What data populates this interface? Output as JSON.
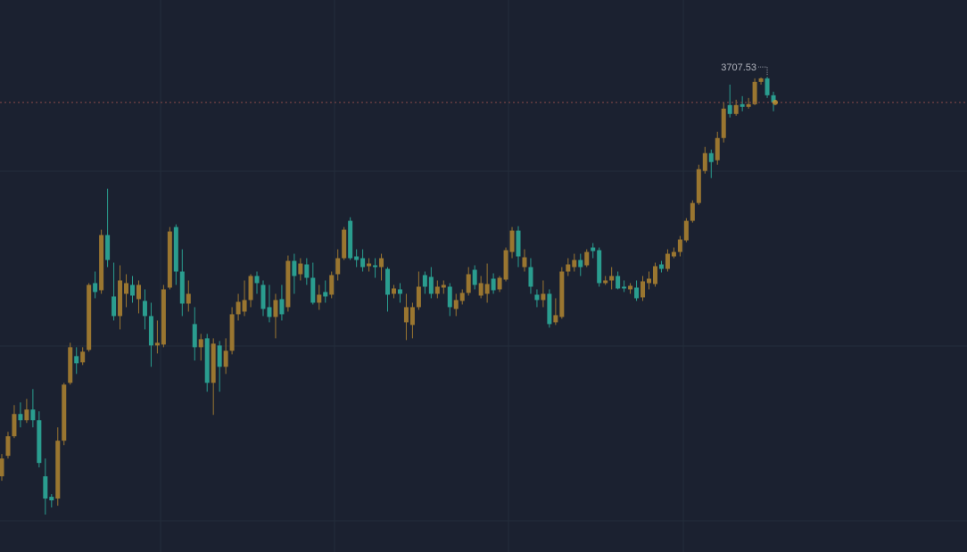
{
  "chart_data": {
    "type": "candlestick",
    "up_color": "#9a7630",
    "down_color": "#2a9d8f",
    "ylim": [
      2640,
      3880
    ],
    "open": [
      2810,
      2856,
      2900,
      2950,
      2936,
      2960,
      2936,
      2810,
      2764,
      2760,
      2890,
      3020,
      3080,
      3066,
      3094,
      3244,
      3228,
      3352,
      3214,
      3170,
      3220,
      3240,
      3208,
      3204,
      3170,
      3104,
      3106,
      3234,
      3370,
      3270,
      3198,
      3152,
      3100,
      3120,
      3020,
      3104,
      3056,
      3092,
      3174,
      3180,
      3206,
      3260,
      3240,
      3190,
      3168,
      3208,
      3190,
      3294,
      3264,
      3286,
      3256,
      3200,
      3224,
      3218,
      3264,
      3300,
      3384,
      3304,
      3300,
      3282,
      3284,
      3280,
      3276,
      3220,
      3230,
      3156,
      3150,
      3190,
      3262,
      3258,
      3220,
      3234,
      3236,
      3186,
      3204,
      3222,
      3274,
      3216,
      3220,
      3254,
      3230,
      3252,
      3314,
      3362,
      3280,
      3280,
      3218,
      3206,
      3220,
      3156,
      3168,
      3270,
      3280,
      3296,
      3284,
      3324,
      3318,
      3244,
      3250,
      3260,
      3236,
      3230,
      3234,
      3212,
      3244,
      3242,
      3286,
      3276,
      3304,
      3314,
      3340,
      3384,
      3424,
      3496,
      3536,
      3520,
      3570,
      3644,
      3624,
      3646,
      3640,
      3646,
      3696,
      3704,
      3666
    ],
    "high": [
      2860,
      2910,
      2970,
      2976,
      2984,
      3006,
      2956,
      2850,
      2770,
      2920,
      3020,
      3110,
      3100,
      3100,
      3244,
      3270,
      3364,
      3456,
      3290,
      3284,
      3264,
      3260,
      3250,
      3230,
      3200,
      3160,
      3240,
      3370,
      3376,
      3320,
      3250,
      3190,
      3130,
      3130,
      3120,
      3114,
      3120,
      3190,
      3220,
      3250,
      3264,
      3270,
      3250,
      3240,
      3220,
      3240,
      3306,
      3310,
      3300,
      3300,
      3290,
      3240,
      3250,
      3270,
      3320,
      3370,
      3392,
      3320,
      3320,
      3300,
      3300,
      3310,
      3280,
      3240,
      3244,
      3220,
      3200,
      3270,
      3270,
      3280,
      3250,
      3250,
      3244,
      3220,
      3230,
      3280,
      3284,
      3260,
      3288,
      3266,
      3260,
      3324,
      3370,
      3372,
      3320,
      3300,
      3230,
      3250,
      3230,
      3210,
      3280,
      3300,
      3310,
      3310,
      3320,
      3334,
      3324,
      3260,
      3280,
      3270,
      3250,
      3244,
      3250,
      3260,
      3270,
      3290,
      3294,
      3320,
      3324,
      3350,
      3390,
      3430,
      3510,
      3550,
      3544,
      3584,
      3650,
      3690,
      3656,
      3664,
      3660,
      3704,
      3706,
      3707.53,
      3674
    ],
    "low": [
      2800,
      2850,
      2896,
      2920,
      2930,
      2920,
      2830,
      2724,
      2740,
      2744,
      2880,
      3016,
      3040,
      3060,
      3090,
      3210,
      3220,
      3280,
      3160,
      3140,
      3190,
      3200,
      3176,
      3140,
      3056,
      3086,
      3100,
      3230,
      3240,
      3170,
      3180,
      3070,
      3070,
      3000,
      2948,
      3000,
      3040,
      3084,
      3160,
      3170,
      3190,
      3220,
      3170,
      3156,
      3120,
      3160,
      3180,
      3220,
      3250,
      3240,
      3196,
      3184,
      3200,
      3210,
      3250,
      3296,
      3296,
      3280,
      3270,
      3270,
      3256,
      3250,
      3180,
      3210,
      3200,
      3116,
      3120,
      3184,
      3220,
      3210,
      3210,
      3220,
      3170,
      3170,
      3196,
      3216,
      3230,
      3210,
      3200,
      3220,
      3224,
      3248,
      3300,
      3280,
      3270,
      3220,
      3190,
      3190,
      3144,
      3150,
      3164,
      3260,
      3270,
      3260,
      3280,
      3300,
      3236,
      3240,
      3230,
      3230,
      3224,
      3220,
      3204,
      3204,
      3230,
      3236,
      3268,
      3270,
      3300,
      3304,
      3336,
      3380,
      3420,
      3490,
      3480,
      3510,
      3560,
      3616,
      3620,
      3630,
      3636,
      3644,
      3690,
      3660,
      3630
    ],
    "close": [
      2850,
      2900,
      2950,
      2936,
      2960,
      2936,
      2840,
      2760,
      2756,
      2890,
      3016,
      3100,
      3064,
      3090,
      3240,
      3224,
      3352,
      3296,
      3170,
      3250,
      3244,
      3216,
      3240,
      3170,
      3104,
      3110,
      3230,
      3360,
      3270,
      3198,
      3220,
      3100,
      3118,
      3020,
      3108,
      3056,
      3092,
      3174,
      3202,
      3206,
      3260,
      3244,
      3186,
      3168,
      3206,
      3174,
      3294,
      3260,
      3288,
      3256,
      3200,
      3218,
      3214,
      3262,
      3300,
      3364,
      3300,
      3296,
      3280,
      3288,
      3280,
      3300,
      3218,
      3232,
      3220,
      3190,
      3190,
      3236,
      3236,
      3220,
      3236,
      3240,
      3190,
      3206,
      3222,
      3264,
      3240,
      3244,
      3242,
      3228,
      3256,
      3318,
      3362,
      3304,
      3302,
      3236,
      3206,
      3220,
      3152,
      3172,
      3270,
      3286,
      3296,
      3280,
      3314,
      3316,
      3244,
      3250,
      3260,
      3232,
      3232,
      3238,
      3210,
      3248,
      3254,
      3282,
      3276,
      3310,
      3314,
      3342,
      3384,
      3424,
      3500,
      3536,
      3516,
      3570,
      3636,
      3624,
      3644,
      3640,
      3646,
      3696,
      3704,
      3666,
      3650
    ]
  }
}
